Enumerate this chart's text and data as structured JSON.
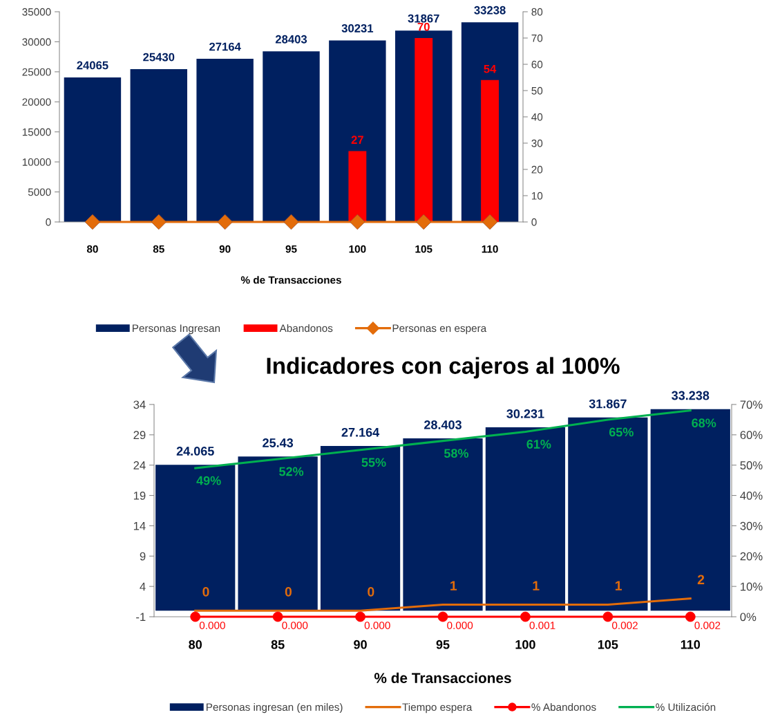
{
  "chart_data": [
    {
      "type": "bar",
      "categories": [
        "80",
        "85",
        "90",
        "95",
        "100",
        "105",
        "110"
      ],
      "xlabel": "% de Transacciones",
      "ylim": [
        0,
        35000
      ],
      "yticks": [
        0,
        5000,
        10000,
        15000,
        20000,
        25000,
        30000,
        35000
      ],
      "y2lim": [
        0,
        80
      ],
      "y2ticks": [
        0,
        10,
        20,
        30,
        40,
        50,
        60,
        70,
        80
      ],
      "legend": "bottom",
      "series": [
        {
          "name": "Personas Ingresan",
          "color": "#002060",
          "values": [
            24065,
            25430,
            27164,
            28403,
            30231,
            31867,
            33238
          ],
          "value_labels": [
            "24065",
            "25430",
            "27164",
            "28403",
            "30231",
            "31867",
            "33238"
          ]
        },
        {
          "name": "Abandonos",
          "color": "#ff0000",
          "axis": "y2",
          "values": [
            null,
            null,
            null,
            null,
            27,
            70,
            54
          ],
          "value_labels": [
            null,
            null,
            null,
            null,
            "27",
            "70",
            "54"
          ]
        },
        {
          "name": "Personas en espera",
          "type": "line",
          "color": "#e36c0a",
          "axis": "y2",
          "marker": "diamond",
          "values": [
            0,
            0,
            0,
            0,
            0,
            0,
            0
          ]
        }
      ]
    },
    {
      "type": "bar",
      "title": "Indicadores con cajeros al 100%",
      "categories": [
        "80",
        "85",
        "90",
        "95",
        "100",
        "105",
        "110"
      ],
      "xlabel": "% de Transacciones",
      "ylim": [
        -1,
        34
      ],
      "yticks": [
        -1,
        4,
        9,
        14,
        19,
        24,
        29,
        34
      ],
      "y2lim": [
        0,
        70
      ],
      "y2ticks": [
        {
          "value": 0,
          "label": "0%"
        },
        {
          "value": 10,
          "label": "10%"
        },
        {
          "value": 20,
          "label": "20%"
        },
        {
          "value": 30,
          "label": "30%"
        },
        {
          "value": 40,
          "label": "40%"
        },
        {
          "value": 50,
          "label": "50%"
        },
        {
          "value": 60,
          "label": "60%"
        },
        {
          "value": 70,
          "label": "70%"
        }
      ],
      "legend": "bottom",
      "series": [
        {
          "name": "Personas ingresan (en miles)",
          "color": "#002060",
          "values": [
            24.065,
            25.43,
            27.164,
            28.403,
            30.231,
            31.867,
            33.238
          ],
          "value_labels": [
            "24.065",
            "25.43",
            "27.164",
            "28.403",
            "30.231",
            "31.867",
            "33.238"
          ]
        },
        {
          "name": "Tiempo espera",
          "type": "line",
          "color": "#e36c0a",
          "values": [
            0,
            0,
            0,
            1,
            1,
            1,
            2
          ],
          "value_labels": [
            "0",
            "0",
            "0",
            "1",
            "1",
            "1",
            "2"
          ]
        },
        {
          "name": "% Abandonos",
          "type": "line",
          "color": "#ff0000",
          "axis": "y2",
          "marker": "circle",
          "values": [
            0,
            0,
            0,
            0,
            0.001,
            0.002,
            0.002
          ],
          "value_labels": [
            "0.000",
            "0.000",
            "0.000",
            "0.000",
            "0.001",
            "0.002",
            "0.002"
          ]
        },
        {
          "name": "% Utilización",
          "type": "line",
          "color": "#00b050",
          "axis": "y2",
          "values": [
            49,
            52,
            55,
            58,
            61,
            65,
            68
          ],
          "value_labels": [
            "49%",
            "52%",
            "55%",
            "58%",
            "61%",
            "65%",
            "68%"
          ]
        }
      ]
    }
  ]
}
